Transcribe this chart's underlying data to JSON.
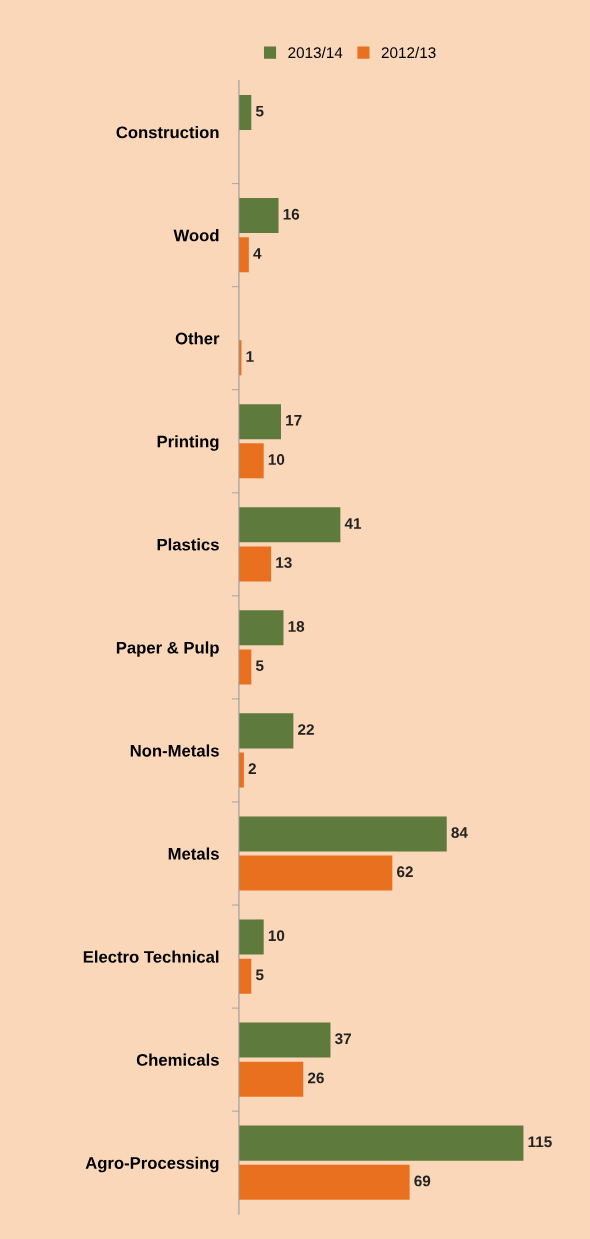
{
  "chart_data": {
    "type": "bar",
    "orientation": "horizontal",
    "data_labels": true,
    "legend": "top",
    "grid": false,
    "categories": [
      "Construction",
      "Wood",
      "Other",
      "Printing",
      "Plastics",
      "Paper & Pulp",
      "Non-Metals",
      "Metals",
      "Electro Technical",
      "Chemicals",
      "Agro-Processing"
    ],
    "series": [
      {
        "name": "2013/14",
        "color": "#5e7a3c",
        "values": [
          5,
          16,
          null,
          17,
          41,
          18,
          22,
          84,
          10,
          37,
          115
        ]
      },
      {
        "name": "2012/13",
        "color": "#e8701e",
        "values": [
          null,
          4,
          1,
          10,
          13,
          5,
          2,
          62,
          5,
          26,
          69
        ]
      }
    ]
  }
}
